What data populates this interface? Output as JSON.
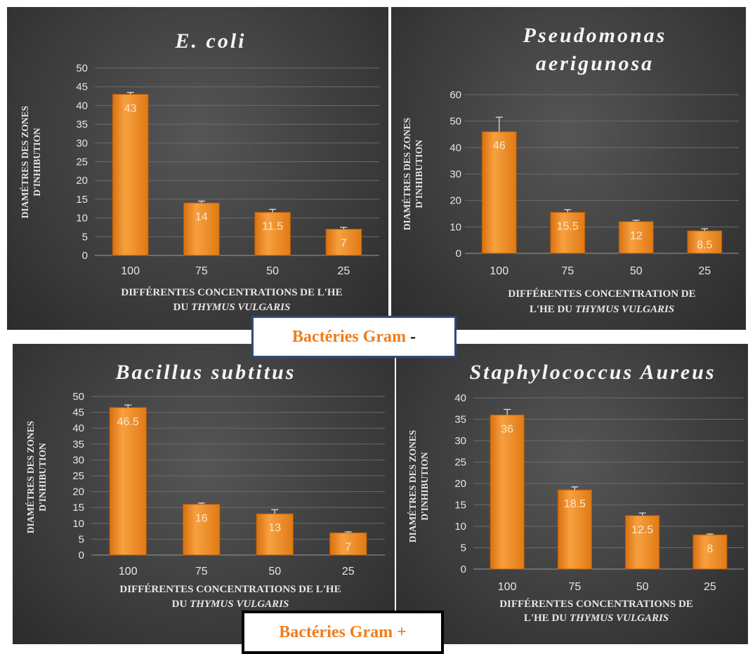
{
  "chart_data": [
    {
      "type": "bar",
      "title": "E. coli",
      "ylabel": [
        "DIAMÉTRES DES ZONES",
        "D'INHIBUTION"
      ],
      "xlabel": [
        {
          "text": "DIFFÉRENTES CONCENTRATIONS DE L'HE"
        },
        {
          "text": "DU ",
          "italic": "THYMUS VULGARIS"
        }
      ],
      "categories": [
        "100",
        "75",
        "50",
        "25"
      ],
      "values": [
        43,
        14,
        11.5,
        7
      ],
      "errors": [
        0.5,
        0.5,
        0.8,
        0.5
      ],
      "ylim": [
        0,
        50
      ],
      "ticks": [
        0,
        5,
        10,
        15,
        20,
        25,
        30,
        35,
        40,
        45,
        50
      ],
      "grid": true
    },
    {
      "type": "bar",
      "title": [
        "Pseudomonas",
        "aerigunosa"
      ],
      "ylabel": [
        "DIAMÉTRES DES ZONES",
        "D'INHIBUTION"
      ],
      "xlabel": [
        {
          "text": "DIFFÉRENTES CONCENTRATION DE"
        },
        {
          "text": "L'HE DU ",
          "italic": "THYMUS VULGARIS"
        }
      ],
      "categories": [
        "100",
        "75",
        "50",
        "25"
      ],
      "values": [
        46,
        15.5,
        12,
        8.5
      ],
      "errors": [
        5.5,
        1,
        0.5,
        0.8
      ],
      "ylim": [
        0,
        60
      ],
      "ticks": [
        0,
        10,
        20,
        30,
        40,
        50,
        60
      ],
      "grid": true
    },
    {
      "type": "bar",
      "title": "Bacillus subtitus",
      "ylabel": [
        "DIAMÉTRES DES ZONES",
        "D'INHIBUTION"
      ],
      "xlabel": [
        {
          "text": "DIFFÉRENTES CONCENTRATIONS DE L'HE"
        },
        {
          "text": "DU ",
          "italic": "THYMUS VULGARIS"
        }
      ],
      "categories": [
        "100",
        "75",
        "50",
        "25"
      ],
      "values": [
        46.5,
        16,
        13,
        7
      ],
      "errors": [
        0.8,
        0.4,
        1.3,
        0.3
      ],
      "ylim": [
        0,
        50
      ],
      "ticks": [
        0,
        5,
        10,
        15,
        20,
        25,
        30,
        35,
        40,
        45,
        50
      ],
      "grid": true
    },
    {
      "type": "bar",
      "title": "Staphylococcus Aureus",
      "ylabel": [
        "DIAMÉTRES DES ZONES",
        "D'INHIBUTION"
      ],
      "xlabel": [
        {
          "text": "DIFFÉRENTES CONCENTRATIONS DE"
        },
        {
          "text": "L'HE DU ",
          "italic": "THYMUS VULGARIS"
        }
      ],
      "categories": [
        "100",
        "75",
        "50",
        "25"
      ],
      "values": [
        36,
        18.5,
        12.5,
        8
      ],
      "errors": [
        1.3,
        0.7,
        0.6,
        0.2
      ],
      "ylim": [
        0,
        40
      ],
      "ticks": [
        0,
        5,
        10,
        15,
        20,
        25,
        30,
        35,
        40
      ],
      "grid": true
    }
  ],
  "colors": {
    "bar": "#f08a1c",
    "bar_dark": "#c9660d",
    "text": "#e6e6e6",
    "title": "#f4f4f4",
    "grid": "#6b6b6b",
    "gram_label": "#ef7d1a",
    "gram_neg_border": "#2e4a7d",
    "gram_pos_border": "#000000"
  },
  "banners": {
    "gram_negative": {
      "label": "Bactéries Gram",
      "sign": "-"
    },
    "gram_positive": {
      "label": "Bactéries Gram",
      "sign": "+"
    }
  }
}
